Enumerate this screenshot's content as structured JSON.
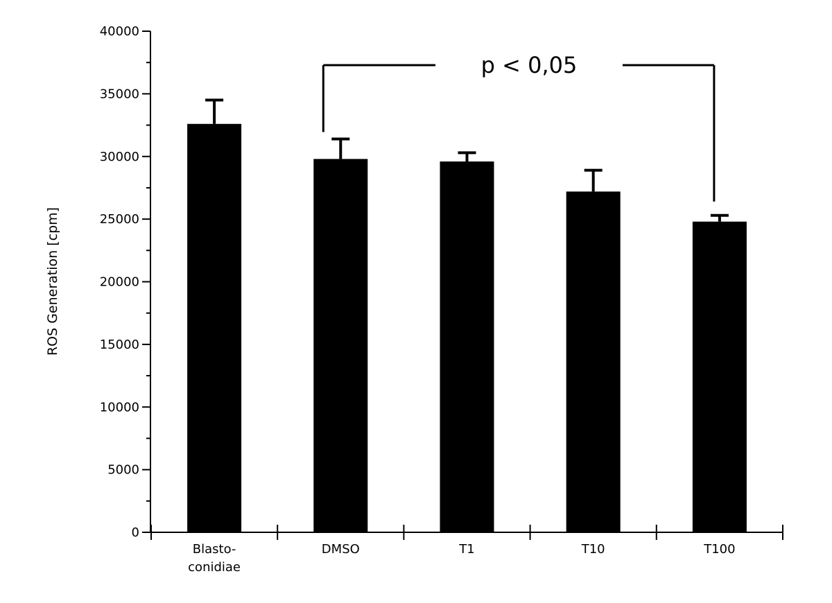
{
  "chart_data": {
    "type": "bar",
    "title": "",
    "xlabel": "",
    "ylabel": "ROS Generation [cpm]",
    "ylim": [
      0,
      40000
    ],
    "yticks": [
      0,
      5000,
      10000,
      15000,
      20000,
      25000,
      30000,
      35000,
      40000
    ],
    "grid": false,
    "legend": "none",
    "categories": [
      [
        "Blasto-",
        "conidiae"
      ],
      [
        "DMSO"
      ],
      [
        "T1"
      ],
      [
        "T10"
      ],
      [
        "T100"
      ]
    ],
    "values": [
      32600,
      29800,
      29600,
      27200,
      24800
    ],
    "error_upper": [
      1900,
      1600,
      700,
      1700,
      500
    ],
    "bar_color": "#000000",
    "annotation": {
      "text": "p < 0,05",
      "from_category": 1,
      "to_category": 4
    }
  }
}
